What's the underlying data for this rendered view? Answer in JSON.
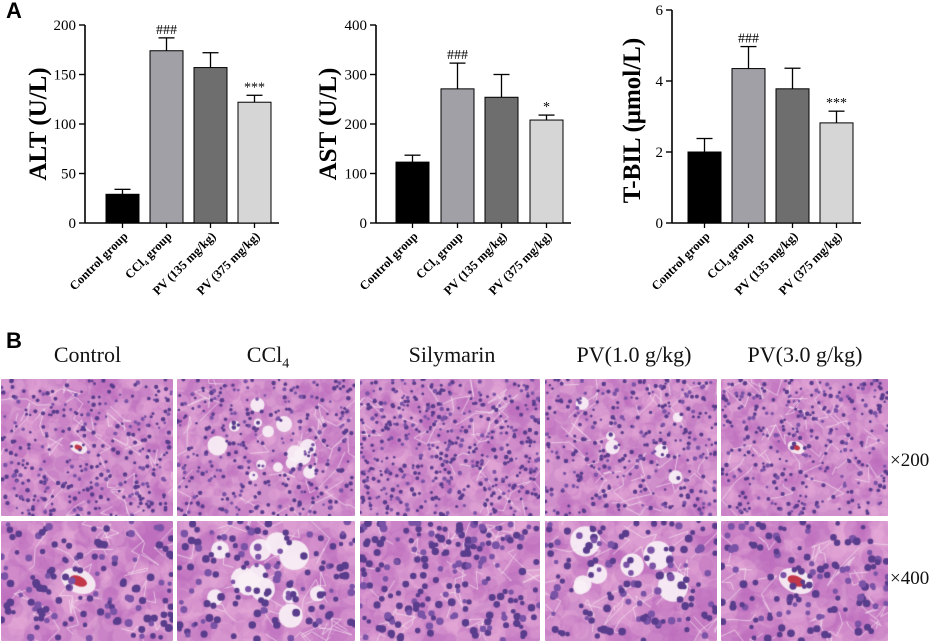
{
  "panel_a_letter": "A",
  "panel_b_letter": "B",
  "chart_data": [
    {
      "type": "bar",
      "title": "",
      "xlabel": "",
      "ylabel": "ALT (U/L)",
      "ylim": [
        0,
        200
      ],
      "yticks": [
        0,
        50,
        100,
        150,
        200
      ],
      "categories": [
        "Control group",
        "CCl₄ group",
        "PV (135 mg/kg)",
        "PV (375 mg/kg)"
      ],
      "values": [
        29,
        174,
        157,
        122
      ],
      "errors": [
        5,
        13,
        15,
        7
      ],
      "annotations": [
        "",
        "###",
        "",
        "***"
      ],
      "colors": [
        "#000000",
        "#a0a0a6",
        "#6e6e6e",
        "#d6d6d6"
      ],
      "grid": false
    },
    {
      "type": "bar",
      "title": "",
      "xlabel": "",
      "ylabel": "AST (U/L)",
      "ylim": [
        0,
        400
      ],
      "yticks": [
        0,
        100,
        200,
        300,
        400
      ],
      "categories": [
        "Control group",
        "CCl₄ group",
        "PV (135 mg/kg)",
        "PV (375 mg/kg)"
      ],
      "values": [
        123,
        271,
        254,
        208
      ],
      "errors": [
        14,
        52,
        46,
        10
      ],
      "annotations": [
        "",
        "###",
        "",
        "*"
      ],
      "colors": [
        "#000000",
        "#a0a0a6",
        "#6e6e6e",
        "#d6d6d6"
      ],
      "grid": false
    },
    {
      "type": "bar",
      "title": "",
      "xlabel": "",
      "ylabel": "T-BIL (μmol/L)",
      "ylim": [
        0,
        6
      ],
      "yticks": [
        0,
        2,
        4,
        6
      ],
      "categories": [
        "Control group",
        "CCl₄ group",
        "PV (135 mg/kg)",
        "PV (375 mg/kg)"
      ],
      "values": [
        2.0,
        4.35,
        3.78,
        2.82
      ],
      "errors": [
        0.38,
        0.62,
        0.58,
        0.33
      ],
      "annotations": [
        "",
        "###",
        "",
        "***"
      ],
      "colors": [
        "#000000",
        "#a0a0a6",
        "#6e6e6e",
        "#d6d6d6"
      ],
      "grid": false
    }
  ],
  "histology": {
    "columns": [
      "Control",
      "CCl",
      "Silymarin",
      "PV(1.0 g/kg)",
      "PV(3.0 g/kg)"
    ],
    "ccl_subscript": "4",
    "magnifications": [
      "×200",
      "×400"
    ]
  }
}
